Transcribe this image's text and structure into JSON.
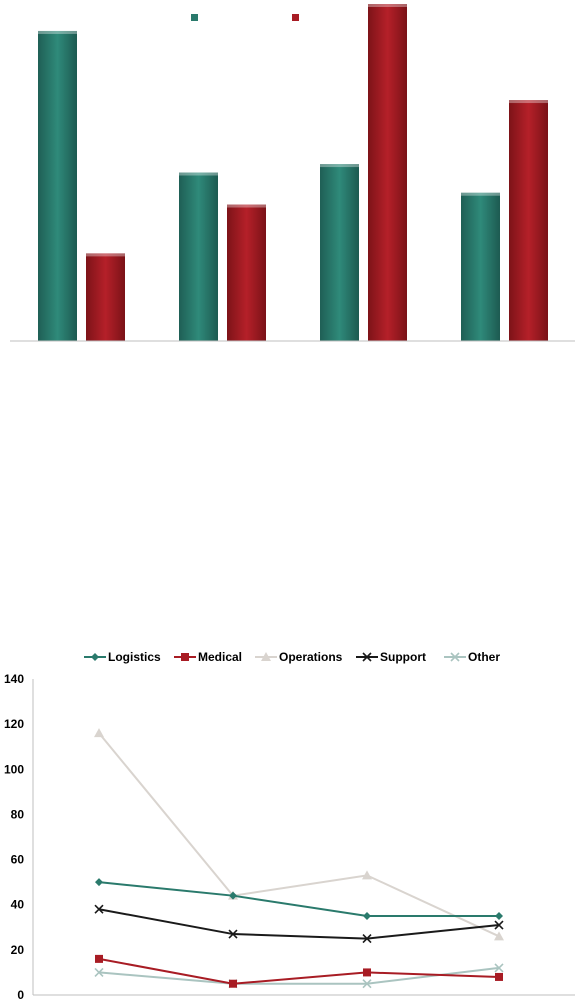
{
  "chart_data": [
    {
      "type": "bar",
      "title": "",
      "xlabel": "",
      "ylabel": "",
      "categories": [
        "",
        "",
        "",
        ""
      ],
      "ylim": [
        0,
        100
      ],
      "legend_position": "top-center",
      "grid": false,
      "series": [
        {
          "name": "",
          "color": "#2a7a6c",
          "values": [
            92,
            50,
            52.5,
            44
          ]
        },
        {
          "name": "",
          "color": "#a81c24",
          "values": [
            26,
            40.5,
            100,
            71.5
          ]
        }
      ]
    },
    {
      "type": "line",
      "title": "",
      "xlabel": "",
      "ylabel": "",
      "x": [
        1,
        2,
        3,
        4
      ],
      "ylim": [
        0,
        140
      ],
      "yticks": [
        "0",
        "20",
        "40",
        "60",
        "80",
        "100",
        "120",
        "140"
      ],
      "legend_position": "top-center",
      "grid": false,
      "series": [
        {
          "name": "Logistics",
          "color": "#2a7a6c",
          "marker": "diamond",
          "values": [
            50,
            44,
            35,
            35
          ]
        },
        {
          "name": "Medical",
          "color": "#a81c24",
          "marker": "square",
          "values": [
            16,
            5,
            10,
            8
          ]
        },
        {
          "name": "Operations",
          "color": "#d9d4cf",
          "marker": "triangle",
          "values": [
            116,
            44,
            53,
            26
          ]
        },
        {
          "name": "Support",
          "color": "#1a1a1a",
          "marker": "x",
          "values": [
            38,
            27,
            25,
            31
          ]
        },
        {
          "name": "Other",
          "color": "#aac4c0",
          "marker": "x",
          "values": [
            10,
            5,
            5,
            12
          ]
        }
      ]
    }
  ]
}
